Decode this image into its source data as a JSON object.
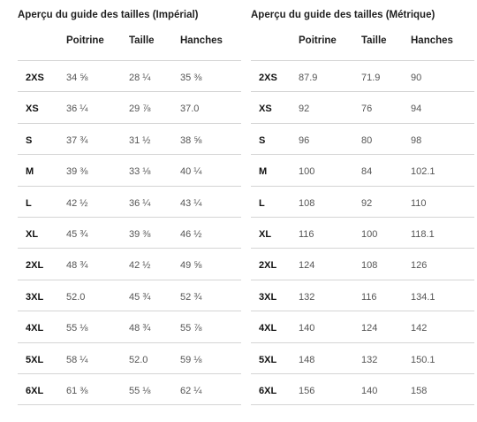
{
  "imperial": {
    "title": "Aperçu du guide des tailles (Impérial)",
    "headers": [
      "Poitrine",
      "Taille",
      "Hanches"
    ],
    "rows": [
      {
        "size": "2XS",
        "values": [
          "34 ⅝",
          "28 ¼",
          "35 ⅜"
        ]
      },
      {
        "size": "XS",
        "values": [
          "36 ¼",
          "29 ⅞",
          "37.0"
        ]
      },
      {
        "size": "S",
        "values": [
          "37 ¾",
          "31 ½",
          "38 ⅝"
        ]
      },
      {
        "size": "M",
        "values": [
          "39 ⅜",
          "33 ⅛",
          "40 ¼"
        ]
      },
      {
        "size": "L",
        "values": [
          "42 ½",
          "36 ¼",
          "43 ¼"
        ]
      },
      {
        "size": "XL",
        "values": [
          "45 ¾",
          "39 ⅜",
          "46 ½"
        ]
      },
      {
        "size": "2XL",
        "values": [
          "48 ¾",
          "42 ½",
          "49 ⅝"
        ]
      },
      {
        "size": "3XL",
        "values": [
          "52.0",
          "45 ¾",
          "52 ¾"
        ]
      },
      {
        "size": "4XL",
        "values": [
          "55 ⅛",
          "48 ¾",
          "55 ⅞"
        ]
      },
      {
        "size": "5XL",
        "values": [
          "58 ¼",
          "52.0",
          "59 ⅛"
        ]
      },
      {
        "size": "6XL",
        "values": [
          "61 ⅜",
          "55 ⅛",
          "62 ¼"
        ]
      }
    ]
  },
  "metric": {
    "title": "Aperçu du guide des tailles (Métrique)",
    "headers": [
      "Poitrine",
      "Taille",
      "Hanches"
    ],
    "rows": [
      {
        "size": "2XS",
        "values": [
          "87.9",
          "71.9",
          "90"
        ]
      },
      {
        "size": "XS",
        "values": [
          "92",
          "76",
          "94"
        ]
      },
      {
        "size": "S",
        "values": [
          "96",
          "80",
          "98"
        ]
      },
      {
        "size": "M",
        "values": [
          "100",
          "84",
          "102.1"
        ]
      },
      {
        "size": "L",
        "values": [
          "108",
          "92",
          "110"
        ]
      },
      {
        "size": "XL",
        "values": [
          "116",
          "100",
          "118.1"
        ]
      },
      {
        "size": "2XL",
        "values": [
          "124",
          "108",
          "126"
        ]
      },
      {
        "size": "3XL",
        "values": [
          "132",
          "116",
          "134.1"
        ]
      },
      {
        "size": "4XL",
        "values": [
          "140",
          "124",
          "142"
        ]
      },
      {
        "size": "5XL",
        "values": [
          "148",
          "132",
          "150.1"
        ]
      },
      {
        "size": "6XL",
        "values": [
          "156",
          "140",
          "158"
        ]
      }
    ]
  }
}
